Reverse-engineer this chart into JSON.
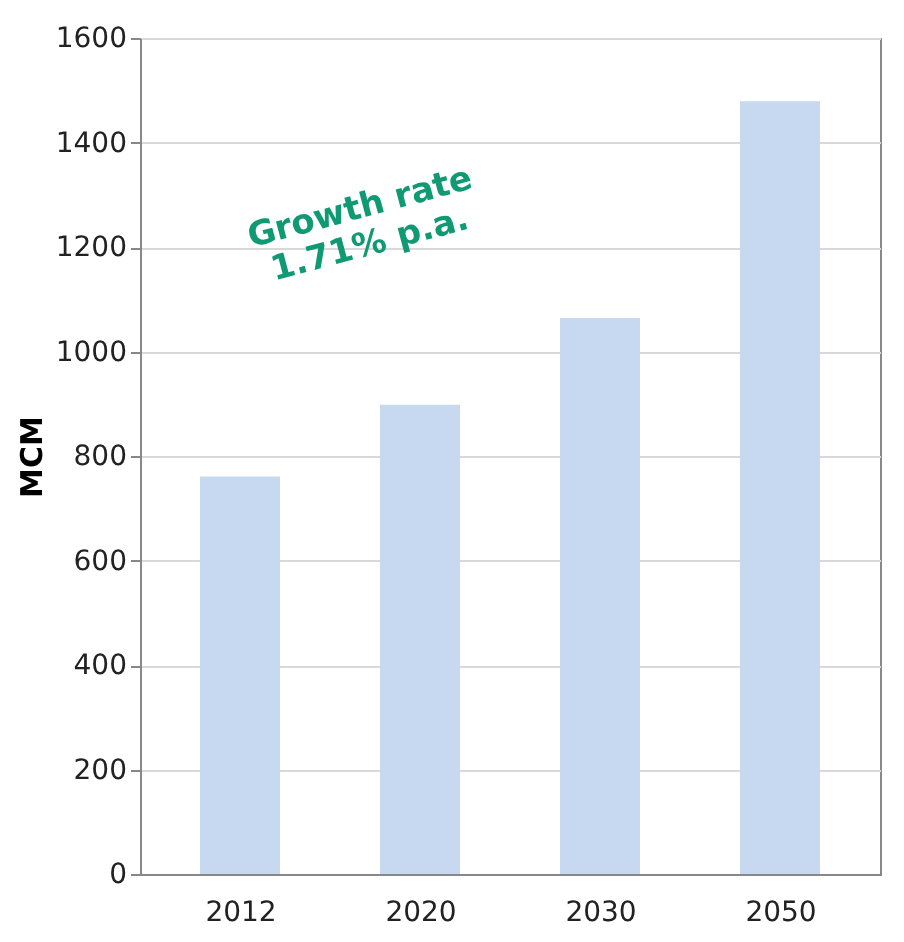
{
  "chart_data": {
    "type": "bar",
    "ylabel": "MCM",
    "categories": [
      "2012",
      "2020",
      "2030",
      "2050"
    ],
    "values": [
      761,
      898,
      1064,
      1479
    ],
    "color": "#c6d9f0",
    "ylim": [
      0,
      1600
    ],
    "yticks": [
      0,
      200,
      400,
      600,
      800,
      1000,
      1200,
      1400,
      1600
    ],
    "grid": "y",
    "annotations": [
      "Growth rate\n1.71% p.a."
    ]
  }
}
